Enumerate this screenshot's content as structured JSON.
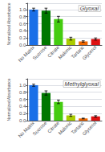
{
  "chart_data": [
    {
      "type": "bar",
      "title": "Glyoxal",
      "categories": [
        "No Matrix",
        "Sucrose",
        "Citrate",
        "Malonic",
        "Tartaric",
        "Glycerol"
      ],
      "values": [
        1.0,
        0.97,
        0.73,
        0.18,
        0.1,
        0.17
      ],
      "errors": [
        0.04,
        0.07,
        0.08,
        0.04,
        0.02,
        0.03
      ],
      "colors": [
        "#1a6fe8",
        "#007700",
        "#44cc10",
        "#aacc00",
        "#ee6600",
        "#dd1111"
      ],
      "ylabel": "Normalized Absorbance",
      "ylim": [
        0,
        1.18
      ],
      "yticks": [
        {
          "value": 0,
          "label": "0.0"
        },
        0.2,
        0.4,
        0.6,
        0.8,
        {
          "value": 1,
          "label": "1.0"
        }
      ],
      "grid": true
    },
    {
      "type": "bar",
      "title": "Methylglyoxal",
      "categories": [
        "No Matrix",
        "Sucrose",
        "Citrate",
        "Malonic",
        "Tartaric",
        "Glycerol"
      ],
      "values": [
        1.0,
        0.78,
        0.53,
        0.15,
        0.06,
        0.12
      ],
      "errors": [
        0.03,
        0.06,
        0.05,
        0.03,
        0.01,
        0.02
      ],
      "colors": [
        "#1a6fe8",
        "#007700",
        "#44cc10",
        "#aacc00",
        "#ee6600",
        "#dd1111"
      ],
      "ylabel": "Normalized Absorbance",
      "ylim": [
        0,
        1.18
      ],
      "yticks": [
        {
          "value": 0,
          "label": "0.0"
        },
        0.2,
        0.4,
        0.6,
        0.8,
        {
          "value": 1,
          "label": "1.0"
        }
      ],
      "grid": true
    }
  ]
}
